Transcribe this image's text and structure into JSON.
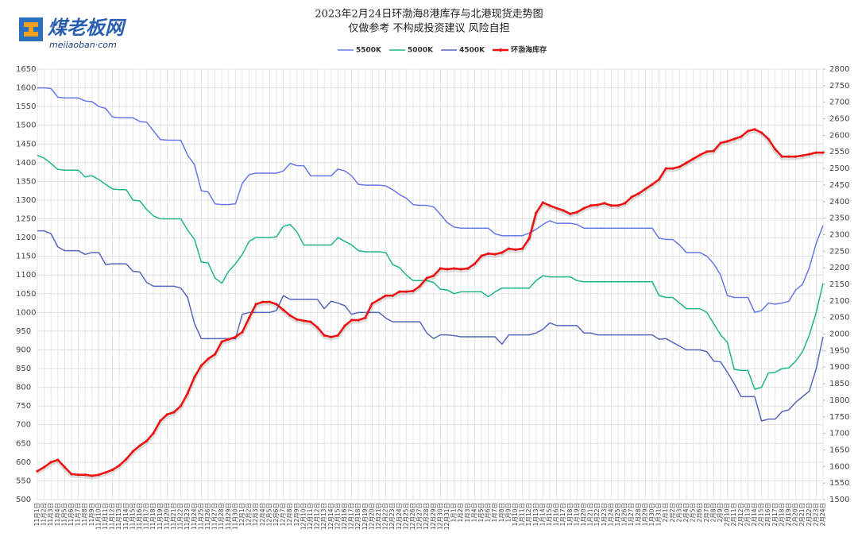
{
  "brand": {
    "name": "煤老板网",
    "domain": "meilaoban·com"
  },
  "chart_data": {
    "type": "line",
    "title": "2023年2月24日环渤海8港库存与北港现货走势图",
    "subtitle": "仅做参考 不构成投资建议 风险自担",
    "categories": [
      "11月1日",
      "11月2日",
      "11月3日",
      "11月4日",
      "11月5日",
      "11月6日",
      "11月7日",
      "11月8日",
      "11月9日",
      "11月10日",
      "11月11日",
      "11月12日",
      "11月13日",
      "11月14日",
      "11月15日",
      "11月16日",
      "11月17日",
      "11月18日",
      "11月19日",
      "11月20日",
      "11月21日",
      "11月22日",
      "11月23日",
      "11月24日",
      "11月25日",
      "11月26日",
      "11月27日",
      "11月28日",
      "11月29日",
      "11月30日",
      "12月1日",
      "12月2日",
      "12月3日",
      "12月4日",
      "12月5日",
      "12月6日",
      "12月7日",
      "12月8日",
      "12月9日",
      "12月10日",
      "12月11日",
      "12月12日",
      "12月13日",
      "12月14日",
      "12月15日",
      "12月16日",
      "12月17日",
      "12月18日",
      "12月19日",
      "12月20日",
      "12月21日",
      "12月22日",
      "12月23日",
      "12月24日",
      "12月25日",
      "12月26日",
      "12月27日",
      "12月28日",
      "12月29日",
      "12月30日",
      "12月31日",
      "1月1日",
      "1月2日",
      "1月3日",
      "1月4日",
      "1月5日",
      "1月6日",
      "1月7日",
      "1月8日",
      "1月9日",
      "1月10日",
      "1月11日",
      "1月12日",
      "1月13日",
      "1月14日",
      "1月15日",
      "1月16日",
      "1月17日",
      "1月18日",
      "1月19日",
      "1月20日",
      "1月21日",
      "1月22日",
      "1月23日",
      "1月24日",
      "1月25日",
      "1月26日",
      "1月27日",
      "1月28日",
      "1月29日",
      "1月30日",
      "1月31日",
      "2月1日",
      "2月2日",
      "2月3日",
      "2月4日",
      "2月5日",
      "2月6日",
      "2月7日",
      "2月8日",
      "2月9日",
      "2月10日",
      "2月11日",
      "2月12日",
      "2月13日",
      "2月14日",
      "2月15日",
      "2月16日",
      "2月17日",
      "2月18日",
      "2月19日",
      "2月20日",
      "2月21日",
      "2月22日",
      "2月23日",
      "2月24日"
    ],
    "series": [
      {
        "name": "5500K",
        "color": "#6678e8",
        "values": [
          1600,
          1600,
          1598,
          1575,
          1573,
          1573,
          1573,
          1565,
          1563,
          1550,
          1545,
          1522,
          1520,
          1520,
          1520,
          1510,
          1508,
          1485,
          1462,
          1460,
          1460,
          1460,
          1420,
          1395,
          1325,
          1322,
          1290,
          1288,
          1288,
          1290,
          1345,
          1368,
          1372,
          1372,
          1372,
          1372,
          1378,
          1398,
          1392,
          1392,
          1365,
          1365,
          1365,
          1365,
          1383,
          1378,
          1365,
          1342,
          1340,
          1340,
          1340,
          1338,
          1328,
          1315,
          1305,
          1288,
          1286,
          1286,
          1282,
          1262,
          1240,
          1228,
          1225,
          1225,
          1225,
          1225,
          1225,
          1210,
          1205,
          1205,
          1205,
          1205,
          1212,
          1222,
          1235,
          1245,
          1238,
          1238,
          1238,
          1235,
          1225,
          1225,
          1225,
          1225,
          1225,
          1225,
          1225,
          1225,
          1225,
          1225,
          1225,
          1198,
          1195,
          1195,
          1180,
          1160,
          1160,
          1160,
          1150,
          1130,
          1100,
          1045,
          1040,
          1040,
          1040,
          1000,
          1005,
          1025,
          1022,
          1025,
          1030,
          1060,
          1075,
          1120,
          1185,
          1232
        ]
      },
      {
        "name": "5000K",
        "color": "#1fb58a",
        "values": [
          1420,
          1412,
          1398,
          1382,
          1380,
          1380,
          1380,
          1362,
          1365,
          1355,
          1342,
          1330,
          1328,
          1328,
          1300,
          1298,
          1275,
          1258,
          1250,
          1250,
          1250,
          1250,
          1220,
          1195,
          1135,
          1132,
          1092,
          1078,
          1110,
          1130,
          1155,
          1190,
          1200,
          1200,
          1200,
          1202,
          1230,
          1235,
          1215,
          1180,
          1180,
          1180,
          1180,
          1180,
          1200,
          1190,
          1180,
          1165,
          1162,
          1162,
          1162,
          1160,
          1128,
          1120,
          1100,
          1085,
          1085,
          1085,
          1080,
          1062,
          1060,
          1050,
          1055,
          1055,
          1055,
          1055,
          1042,
          1055,
          1065,
          1065,
          1065,
          1065,
          1065,
          1085,
          1098,
          1095,
          1095,
          1095,
          1095,
          1085,
          1082,
          1082,
          1082,
          1082,
          1082,
          1082,
          1082,
          1082,
          1082,
          1082,
          1082,
          1045,
          1040,
          1040,
          1025,
          1010,
          1010,
          1010,
          1000,
          970,
          940,
          920,
          848,
          845,
          845,
          795,
          800,
          838,
          840,
          850,
          852,
          870,
          895,
          940,
          1000,
          1078
        ]
      },
      {
        "name": "4500K",
        "color": "#5566bb",
        "values": [
          1218,
          1218,
          1210,
          1175,
          1165,
          1165,
          1165,
          1155,
          1160,
          1160,
          1128,
          1130,
          1130,
          1130,
          1110,
          1108,
          1080,
          1070,
          1070,
          1070,
          1070,
          1065,
          1040,
          970,
          930,
          930,
          930,
          930,
          930,
          930,
          995,
          1000,
          1000,
          1000,
          1000,
          1005,
          1045,
          1035,
          1035,
          1035,
          1035,
          1035,
          1010,
          1030,
          1025,
          1018,
          995,
          1000,
          1000,
          1000,
          1000,
          985,
          975,
          975,
          975,
          975,
          975,
          945,
          930,
          940,
          940,
          938,
          935,
          935,
          935,
          935,
          935,
          935,
          915,
          940,
          940,
          940,
          940,
          945,
          955,
          972,
          965,
          965,
          965,
          965,
          945,
          945,
          940,
          940,
          940,
          940,
          940,
          940,
          940,
          940,
          940,
          928,
          930,
          920,
          910,
          900,
          900,
          900,
          895,
          870,
          868,
          840,
          810,
          775,
          775,
          775,
          710,
          715,
          715,
          735,
          740,
          760,
          775,
          790,
          850,
          935
        ]
      },
      {
        "name": "环渤海库存",
        "color": "#ee1111",
        "axis": "y2",
        "values": [
          1586,
          1598,
          1613,
          1620,
          1598,
          1577,
          1575,
          1575,
          1572,
          1575,
          1582,
          1590,
          1603,
          1622,
          1646,
          1663,
          1677,
          1701,
          1738,
          1757,
          1764,
          1783,
          1821,
          1870,
          1905,
          1925,
          1939,
          1977,
          1984,
          1991,
          2006,
          2049,
          2090,
          2097,
          2097,
          2090,
          2073,
          2056,
          2044,
          2040,
          2037,
          2020,
          1996,
          1991,
          1996,
          2025,
          2042,
          2042,
          2049,
          2092,
          2104,
          2116,
          2116,
          2128,
          2128,
          2130,
          2145,
          2169,
          2176,
          2198,
          2196,
          2198,
          2196,
          2198,
          2212,
          2236,
          2243,
          2241,
          2246,
          2258,
          2255,
          2258,
          2289,
          2366,
          2397,
          2388,
          2380,
          2373,
          2363,
          2368,
          2380,
          2388,
          2390,
          2395,
          2388,
          2388,
          2395,
          2414,
          2424,
          2438,
          2452,
          2467,
          2500,
          2500,
          2505,
          2517,
          2529,
          2541,
          2551,
          2553,
          2577,
          2582,
          2589,
          2596,
          2613,
          2618,
          2608,
          2589,
          2558,
          2536,
          2536,
          2536,
          2539,
          2543,
          2548,
          2548
        ]
      }
    ],
    "ylim": [
      500,
      1650
    ],
    "yticks": [
      500,
      550,
      600,
      650,
      700,
      750,
      800,
      850,
      900,
      950,
      1000,
      1050,
      1100,
      1150,
      1200,
      1250,
      1300,
      1350,
      1400,
      1450,
      1500,
      1550,
      1600,
      1650
    ],
    "y2lim": [
      1500,
      2800
    ],
    "y2ticks": [
      1500,
      1550,
      1600,
      1650,
      1700,
      1750,
      1800,
      1850,
      1900,
      1950,
      2000,
      2050,
      2100,
      2150,
      2200,
      2250,
      2300,
      2350,
      2400,
      2450,
      2500,
      2550,
      2600,
      2650,
      2700,
      2750,
      2800
    ],
    "grid": true,
    "legend": "top"
  }
}
